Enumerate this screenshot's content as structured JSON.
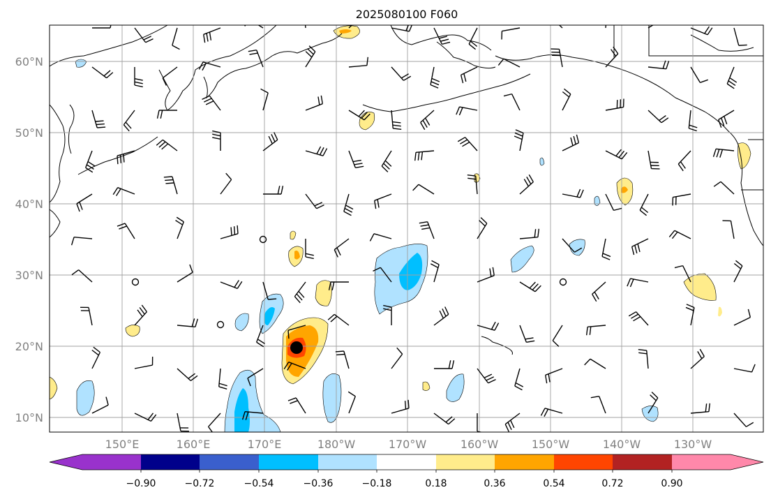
{
  "title": "2025080100 F060",
  "lat_labels": [
    "60°N",
    "50°N",
    "40°N",
    "30°N",
    "20°N",
    "10°N"
  ],
  "lon_labels": [
    "150°E",
    "160°E",
    "170°E",
    "180°W",
    "170°W",
    "160°W",
    "150°W",
    "140°W",
    "130°W"
  ],
  "colorbar": {
    "labels": [
      "−0.90",
      "−0.72",
      "−0.54",
      "−0.36",
      "−0.18",
      "0.18",
      "0.36",
      "0.54",
      "0.72",
      "0.90"
    ],
    "colors": [
      "#9932cc",
      "#00008b",
      "#3a5fcd",
      "#00bfff",
      "#b0e2ff",
      "#ffffff",
      "#ffec8b",
      "#ffa500",
      "#ff4500",
      "#b22222",
      "#ff88aa"
    ]
  },
  "map_colors": {
    "grid": "#a0a0a0",
    "coast": "#000000",
    "barb": "#000000"
  },
  "features": {
    "storm_marker_color": "#000000"
  }
}
